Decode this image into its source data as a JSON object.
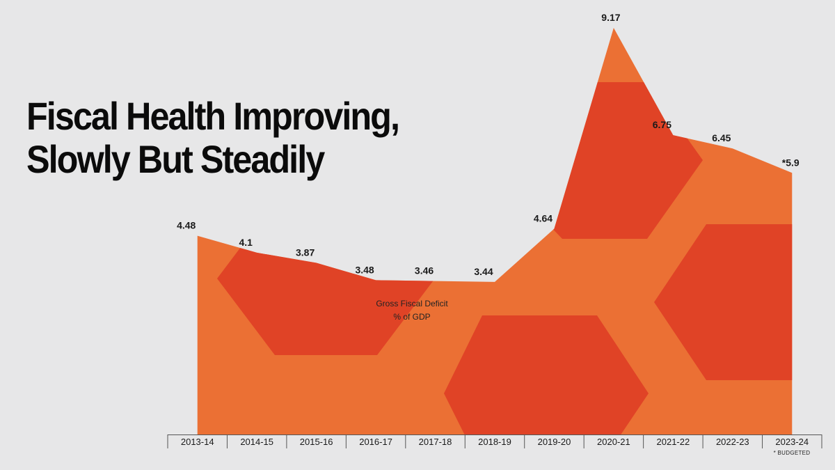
{
  "title": {
    "line1": "Fiscal Health Improving,",
    "line2": "Slowly But Steadily"
  },
  "chart_data": {
    "type": "area",
    "title": "Fiscal Health Improving, Slowly But Steadily",
    "ylabel": "Gross Fiscal Deficit",
    "ylabel_unit": "% of GDP",
    "categories": [
      "2013-14",
      "2014-15",
      "2015-16",
      "2016-17",
      "2017-18",
      "2018-19",
      "2019-20",
      "2020-21",
      "2021-22",
      "2022-23",
      "2023-24"
    ],
    "values": [
      4.48,
      4.1,
      3.87,
      3.48,
      3.46,
      3.44,
      4.64,
      9.17,
      6.75,
      6.45,
      5.9
    ],
    "value_labels": [
      "4.48",
      "4.1",
      "3.87",
      "3.48",
      "3.46",
      "3.44",
      "4.64",
      "9.17",
      "6.75",
      "6.45",
      "*5.9"
    ],
    "ylim": [
      0,
      9.17
    ],
    "grid": false,
    "footnote": "* BUDGETED",
    "colors": {
      "fill_light": "#eb7034",
      "fill_dark": "#e04326",
      "axis": "#555555",
      "text": "#1a1a1a"
    }
  }
}
